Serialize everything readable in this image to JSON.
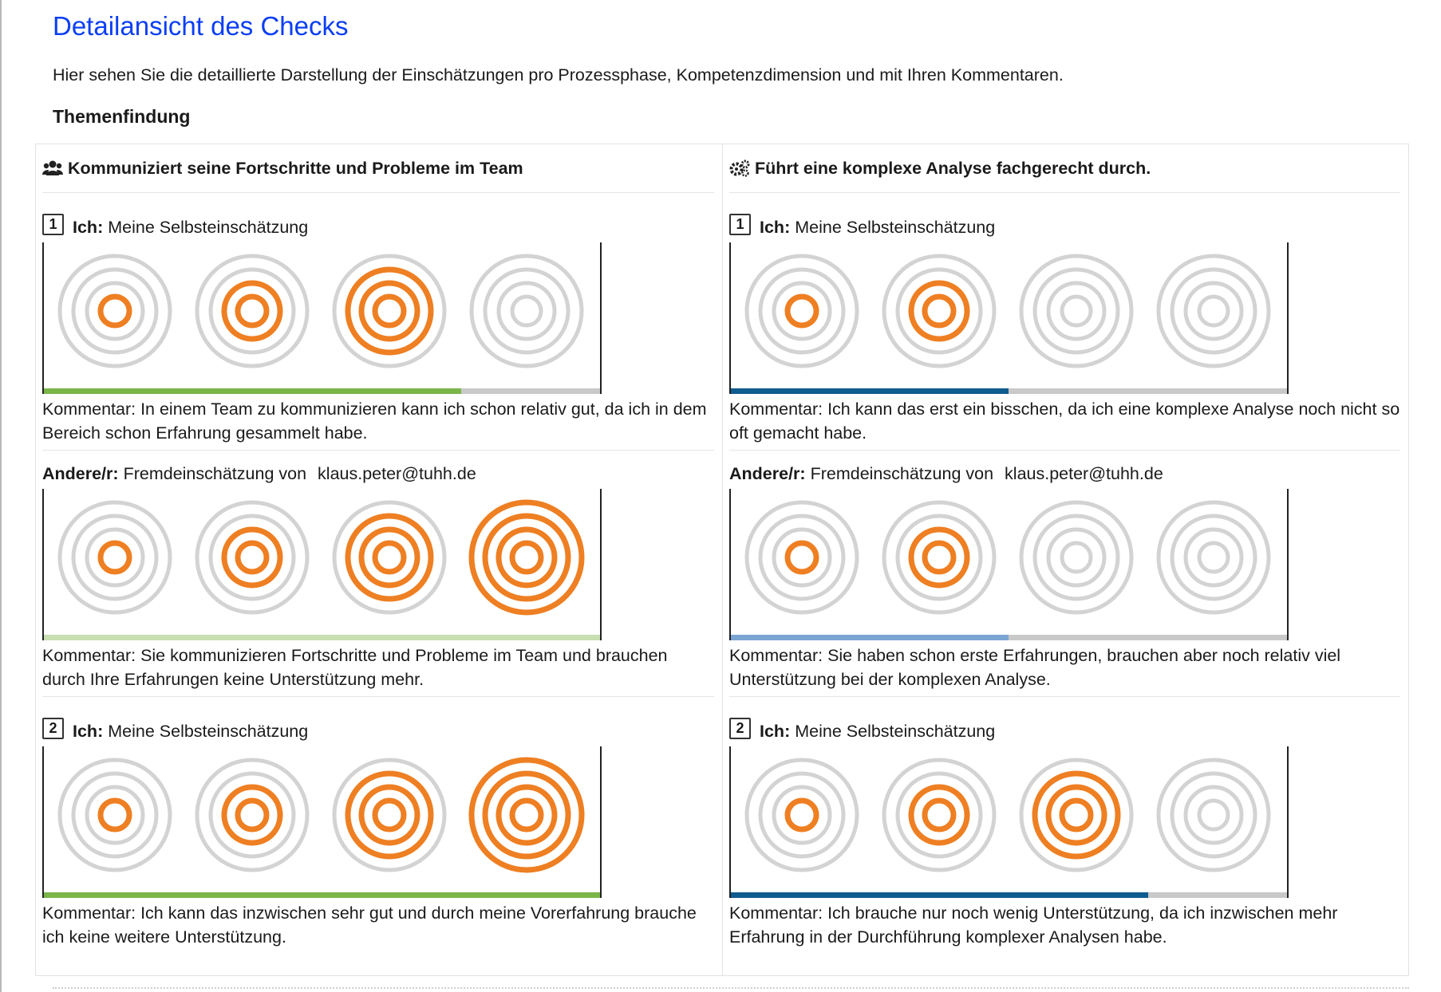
{
  "page": {
    "title": "Detailansicht des Checks",
    "intro": "Hier sehen Sie die detaillierte Darstellung der Einschätzungen pro Prozessphase, Kompetenzdimension und mit Ihren Kommentaren.",
    "phase": "Themenfindung"
  },
  "colors": {
    "active_ring": "#ee7f22",
    "inactive_ring": "#d3d3d3",
    "left_self_bar": "#7ab648",
    "left_other_bar": "#c8dfb1",
    "right_self_bar": "#0f5c8f",
    "right_other_bar": "#7ba6d3",
    "track": "#c9c9c9"
  },
  "columns": [
    {
      "title": "Kommuniziert seine Fortschritte und Probleme im Team",
      "icon": "users-icon",
      "self_label": "Ich:",
      "self_text": "Meine Selbsteinschätzung",
      "other_label": "Andere/r:",
      "other_text": "Fremdeinschätzung von",
      "other_email": "klaus.peter@tuhh.de",
      "check1_number": "1",
      "check2_number": "2",
      "check1_self": {
        "level": 3,
        "comment": "Kommentar: In einem Team zu kommunizieren kann ich schon relativ gut, da ich in dem Bereich schon Erfahrung gesammelt habe."
      },
      "check1_other": {
        "level": 4,
        "comment": "Kommentar: Sie kommunizieren Fortschritte und Probleme im Team und brauchen durch Ihre Erfahrungen keine Unterstützung mehr."
      },
      "check2_self": {
        "level": 4,
        "comment": "Kommentar: Ich kann das inzwischen sehr gut und durch meine Vorerfahrung brauche ich keine weitere Unterstützung."
      }
    },
    {
      "title": "Führt eine komplexe Analyse fachgerecht durch.",
      "icon": "gears-icon",
      "self_label": "Ich:",
      "self_text": "Meine Selbsteinschätzung",
      "other_label": "Andere/r:",
      "other_text": "Fremdeinschätzung von",
      "other_email": "klaus.peter@tuhh.de",
      "check1_number": "1",
      "check2_number": "2",
      "check1_self": {
        "level": 2,
        "comment": "Kommentar: Ich kann das erst ein bisschen, da ich eine komplexe Analyse noch nicht so oft gemacht habe."
      },
      "check1_other": {
        "level": 2,
        "comment": "Kommentar: Sie haben schon erste Erfahrungen, brauchen aber noch relativ viel Unterstützung bei der komplexen Analyse."
      },
      "check2_self": {
        "level": 3,
        "comment": "Kommentar: Ich brauche nur noch wenig Unterstützung, da ich inzwischen mehr Erfahrung in der Durchführung komplexer Analysen habe."
      }
    }
  ]
}
